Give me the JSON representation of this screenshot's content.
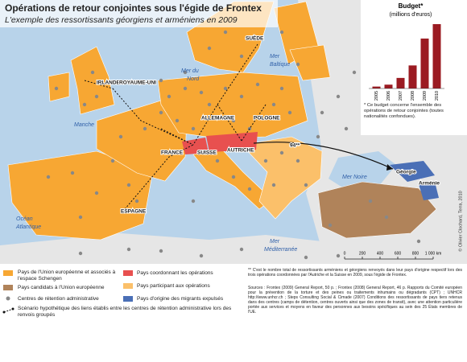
{
  "title": "Opérations de retour conjointes sous l'égide de Frontex",
  "subtitle": "L'exemple des ressortissants géorgiens et arméniens en 2009",
  "countries": [
    "SUÈDE",
    "IRLANDE",
    "ROYAUME-UNI",
    "ALLEMAGNE",
    "POLOGNE",
    "FRANCE",
    "SUISSE",
    "AUTRICHE",
    "ESPAGNE",
    "Géorgie",
    "Arménie"
  ],
  "seas": [
    "Mer du",
    "Nord",
    "Mer",
    "Baltique",
    "Manche",
    "Mer Noire",
    "Océan",
    "Atlantique",
    "Mer",
    "Méditerranée"
  ],
  "route_label": "94**",
  "chart_data": {
    "type": "bar",
    "title": "Budget*",
    "subtitle": "(millions d'euros)",
    "categories": [
      "2005",
      "2006",
      "2007",
      "2008",
      "2009",
      "2010"
    ],
    "values": [
      0.2,
      0.4,
      1.1,
      2.4,
      5.2,
      6.7
    ],
    "color": "#9b1b22",
    "note": "* Ce budget concerne l'ensemble des opérations de retour conjointes (toutes nationalités confondues)."
  },
  "legend": [
    "Pays de l'Union européenne et associés à l'espace Schengen",
    "Pays candidats à l'Union européenne",
    "Centres de rétention administrative",
    "Scénario hypothétique des liens établis entre les centres de rétention administrative lors des renvois groupés",
    "Pays coordonnant les opérations",
    "Pays participant aux opérations",
    "Pays d'origine des migrants expulsés"
  ],
  "scale": {
    "ticks": [
      0,
      200,
      400,
      600,
      800,
      {
        "value": 1000,
        "label": "1 000 km"
      }
    ]
  },
  "footnote": "** C'est le nombre total de ressortissants arméniens et géorgiens renvoyés dans leur pays d'origine respectif lors des trois opérations coordonnées par l'Autriche et la Suisse en 2009, sous l'égide de Frontex.",
  "sources": "Sources : Frontex (2009) General Report, 50 p. ; Frontex (2008) General Report, 46 p. Rapports du Comité européen pour la prévention de la torture et des peines ou traitements inhumains ou dégradants (CPT) ; UNHCR http://www.unhcr.ch ; Steps Consulting Social & Cimade (2007) Conditions des ressortissants de pays tiers retenus dans des centres (camps de détention, centres ouverts ainsi que des zones de transit), avec une attention particulière portée aux services et moyens en faveur des personnes aux besoins spécifiques au sein des 25 États membres de l'UE.",
  "credit": "© Olivier Clochard, Terra, 2010"
}
